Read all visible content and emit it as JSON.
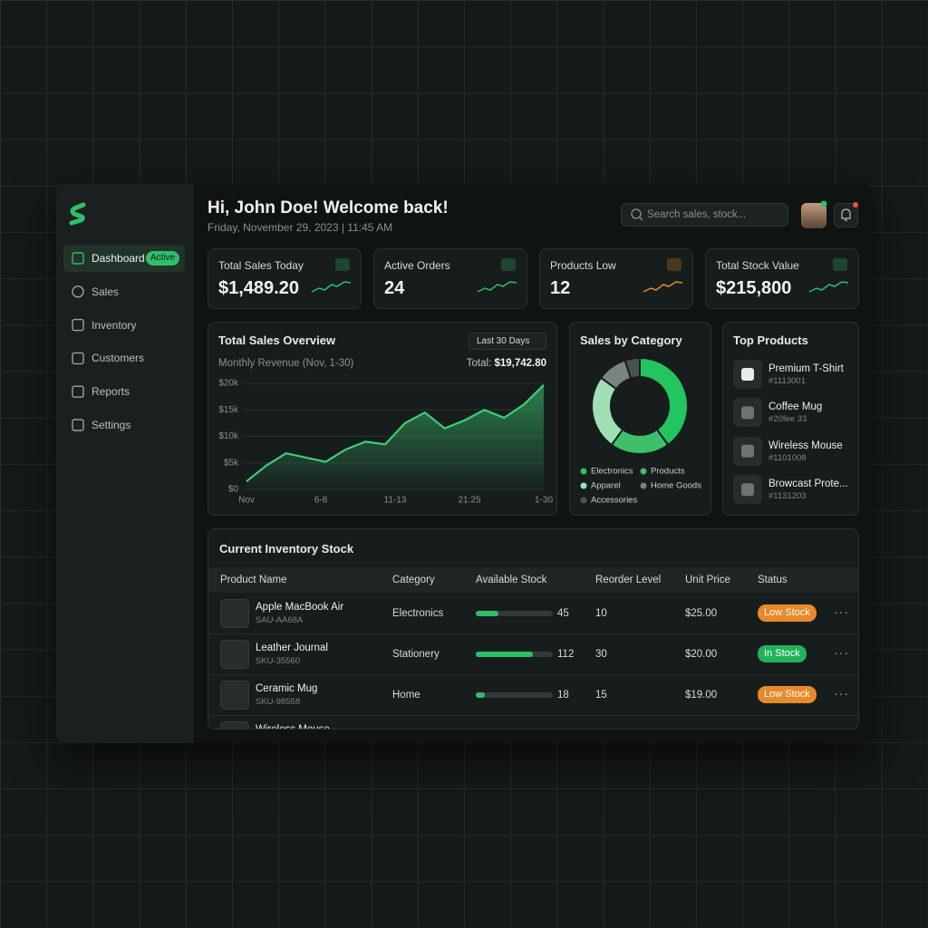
{
  "sidebar": {
    "nav": [
      {
        "label": "Dashboard",
        "badge": "Active"
      },
      {
        "label": "Sales"
      },
      {
        "label": "Inventory"
      },
      {
        "label": "Customers"
      },
      {
        "label": "Reports"
      },
      {
        "label": "Settings"
      }
    ]
  },
  "header": {
    "title": "Hi, John Doe! Welcome back!",
    "subtitle": "Friday, November 29, 2023 | 11:45 AM",
    "search_placeholder": "Search sales, stock..."
  },
  "kpis": [
    {
      "label": "Total Sales Today",
      "value": "$1,489.20",
      "color": "#2fbf68"
    },
    {
      "label": "Active Orders",
      "value": "24",
      "color": "#2fbf68"
    },
    {
      "label": "Products Low",
      "value": "12",
      "color": "#e8892a"
    },
    {
      "label": "Total Stock Value",
      "value": "$215,800",
      "color": "#2fbf68"
    }
  ],
  "sales_overview": {
    "title": "Total Sales Overview",
    "range": "Last 30 Days",
    "subtitle": "Monthly Revenue (Nov, 1-30)",
    "total_label": "Total:",
    "total": "$19,742.80",
    "chart": {
      "type": "area",
      "color": "#3ccf76",
      "grid": true,
      "x": [
        0,
        1,
        2,
        3,
        4,
        5,
        6,
        7,
        8,
        9,
        10,
        11,
        12,
        13,
        14,
        15
      ],
      "values": [
        1500,
        4500,
        6800,
        6000,
        5200,
        7500,
        9000,
        8500,
        12500,
        14500,
        11500,
        13000,
        15000,
        13500,
        16000,
        19700
      ],
      "xlim": [
        0,
        15
      ],
      "xticks": [
        {
          "value": 0,
          "label": "Nov"
        },
        {
          "value": 3.75,
          "label": "6-8"
        },
        {
          "value": 7.5,
          "label": "11-13"
        },
        {
          "value": 11.25,
          "label": "21:25"
        },
        {
          "value": 15,
          "label": "1-30"
        }
      ],
      "ylim": [
        0,
        20000
      ],
      "yticks": [
        {
          "value": 0,
          "label": "$0"
        },
        {
          "value": 5000,
          "label": "$5k"
        },
        {
          "value": 10000,
          "label": "$10k"
        },
        {
          "value": 15000,
          "label": "$15k"
        },
        {
          "value": 20000,
          "label": "$20k"
        }
      ]
    }
  },
  "category": {
    "title": "Sales by Category",
    "chart": {
      "type": "pie",
      "categories": [
        "Electronics",
        "Products",
        "Apparel",
        "Home Goods",
        "Accessories"
      ],
      "values": [
        40,
        20,
        25,
        10,
        5
      ],
      "colors": [
        "#22c55e",
        "#3fbf6c",
        "#9fe0b3",
        "#7a8381",
        "#4b5351"
      ]
    }
  },
  "top_products": {
    "title": "Top Products",
    "items": [
      {
        "name": "Premium T-Shirt",
        "sku": "#1113001"
      },
      {
        "name": "Coffee Mug",
        "sku": "#20fee 33"
      },
      {
        "name": "Wireless Mouse",
        "sku": "#1101008"
      },
      {
        "name": "Browcast Prote...",
        "sku": "#1131203"
      }
    ]
  },
  "inventory": {
    "title": "Current Inventory Stock",
    "columns": [
      "Product Name",
      "Category",
      "Available Stock",
      "Reorder Level",
      "Unit Price",
      "Status"
    ],
    "rows": [
      {
        "name": "Apple MacBook Air",
        "sku": "SAU-AA68A",
        "category": "Electronics",
        "stock": 45,
        "reorder": 10,
        "price": "$25.00",
        "status": "Low Stock",
        "status_color": "#e8892a"
      },
      {
        "name": "Leather Journal",
        "sku": "SKU-35560",
        "category": "Stationery",
        "stock": 112,
        "reorder": 30,
        "price": "$20.00",
        "status": "In Stock",
        "status_color": "#22b35a"
      },
      {
        "name": "Ceramic Mug",
        "sku": "SKU-98558",
        "category": "Home",
        "stock": 18,
        "reorder": 15,
        "price": "$19.00",
        "status": "Low Stock",
        "status_color": "#e8892a"
      },
      {
        "name": "Wireless Mouse"
      }
    ]
  }
}
